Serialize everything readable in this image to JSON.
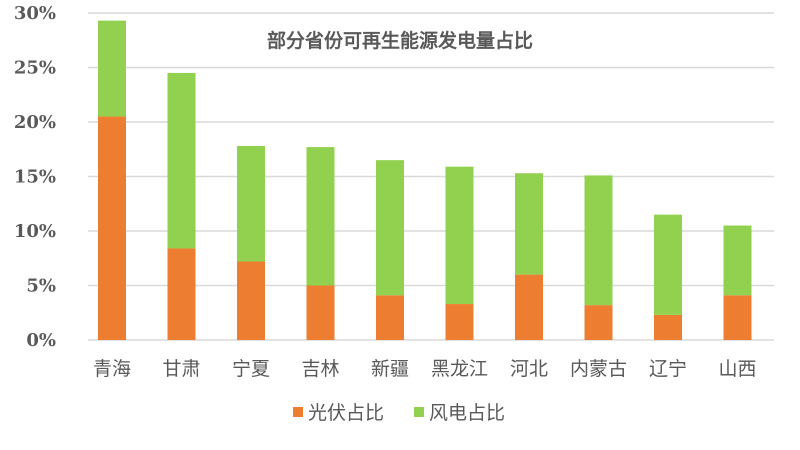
{
  "chart_data": {
    "type": "bar",
    "stacked": true,
    "title": "部分省份可再生能源发电量占比",
    "xlabel": "",
    "ylabel": "",
    "categories": [
      "青海",
      "甘肃",
      "宁夏",
      "吉林",
      "新疆",
      "黑龙江",
      "河北",
      "内蒙古",
      "辽宁",
      "山西"
    ],
    "series": [
      {
        "name": "光伏占比",
        "color": "#ED7D31",
        "values": [
          20.5,
          8.4,
          7.2,
          5.0,
          4.1,
          3.3,
          6.0,
          3.2,
          2.3,
          4.1
        ]
      },
      {
        "name": "风电占比",
        "color": "#92D050",
        "values": [
          8.8,
          16.1,
          10.6,
          12.7,
          12.4,
          12.6,
          9.3,
          11.9,
          9.2,
          6.4
        ]
      }
    ],
    "ylim": [
      0,
      30
    ],
    "yticks": [
      "0%",
      "5%",
      "10%",
      "15%",
      "20%",
      "25%",
      "30%"
    ],
    "grid": true,
    "legend_position": "bottom"
  }
}
